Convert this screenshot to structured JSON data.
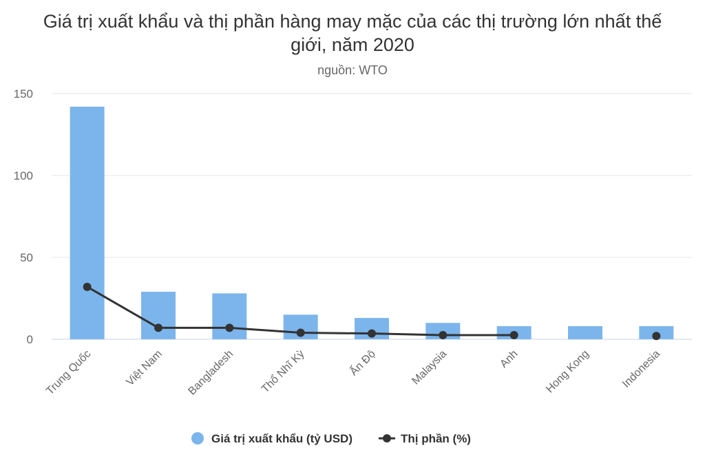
{
  "chart_data": {
    "type": "bar-line",
    "title": "Giá trị xuất khẩu và thị phần hàng may mặc của các thị trường lớn nhất thế giới, năm 2020",
    "subtitle": "nguồn: WTO",
    "categories": [
      "Trung Quốc",
      "Việt Nam",
      "Bangladesh",
      "Thổ Nhĩ Kỳ",
      "Ấn Độ",
      "Malaysia",
      "Anh",
      "Hong Kong",
      "Indonesia"
    ],
    "series": [
      {
        "name": "Giá trị xuất khẩu (tỷ USD)",
        "type": "bar",
        "color": "#7cb5ec",
        "values": [
          142,
          29,
          28,
          15,
          13,
          10,
          8,
          8,
          8
        ]
      },
      {
        "name": "Thị phần (%)",
        "type": "line",
        "color": "#333333",
        "values": [
          32,
          7,
          7,
          4,
          3.5,
          2.5,
          2.5,
          null,
          2
        ]
      }
    ],
    "ylim": [
      0,
      150
    ],
    "yticks": [
      0,
      50,
      100,
      150
    ],
    "grid": true,
    "legend": "bottom"
  }
}
